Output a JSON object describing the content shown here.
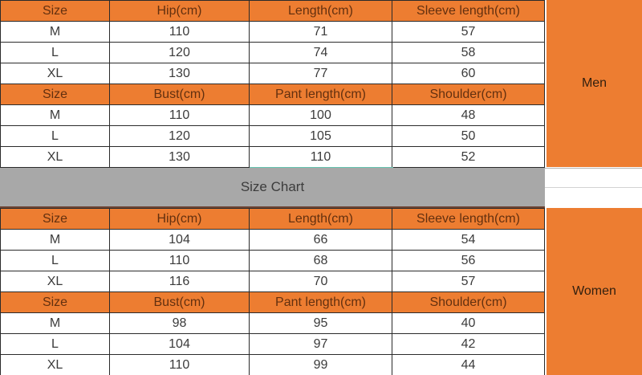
{
  "banner": {
    "label": "Size Chart"
  },
  "men": {
    "label": "Men",
    "sections": [
      {
        "header": [
          "Size",
          "Hip(cm)",
          "Length(cm)",
          "Sleeve length(cm)"
        ],
        "rows": [
          [
            "M",
            "110",
            "71",
            "57"
          ],
          [
            "L",
            "120",
            "74",
            "58"
          ],
          [
            "XL",
            "130",
            "77",
            "60"
          ]
        ]
      },
      {
        "header": [
          "Size",
          "Bust(cm)",
          "Pant length(cm)",
          "Shoulder(cm)"
        ],
        "rows": [
          [
            "M",
            "110",
            "100",
            "48"
          ],
          [
            "L",
            "120",
            "105",
            "50"
          ],
          [
            "XL",
            "130",
            "110",
            "52"
          ]
        ]
      }
    ]
  },
  "women": {
    "label": "Women",
    "sections": [
      {
        "header": [
          "Size",
          "Hip(cm)",
          "Length(cm)",
          "Sleeve length(cm)"
        ],
        "rows": [
          [
            "M",
            "104",
            "66",
            "54"
          ],
          [
            "L",
            "110",
            "68",
            "56"
          ],
          [
            "XL",
            "116",
            "70",
            "57"
          ]
        ]
      },
      {
        "header": [
          "Size",
          "Bust(cm)",
          "Pant length(cm)",
          "Shoulder(cm)"
        ],
        "rows": [
          [
            "M",
            "98",
            "95",
            "40"
          ],
          [
            "L",
            "104",
            "97",
            "42"
          ],
          [
            "XL",
            "110",
            "99",
            "44"
          ]
        ]
      }
    ]
  },
  "colors": {
    "accent_orange": "#ED7D31",
    "band_gray": "#A8A8A8",
    "teal_accent": "#65C3AE",
    "border_dark": "#2B2B2B"
  }
}
